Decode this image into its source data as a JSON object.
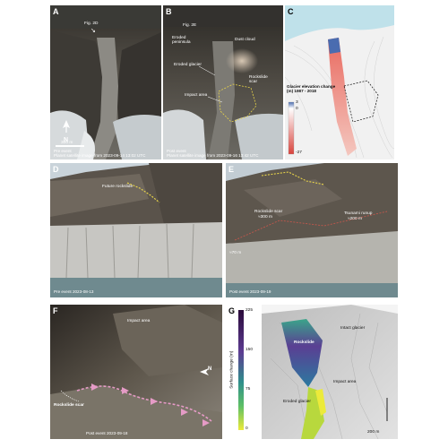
{
  "panel_a": {
    "label": "A",
    "fig_ref": "Fig. 2D",
    "north": "N",
    "scale": "300 m",
    "caption_1": "Pre event",
    "caption_2": "Planet satellite image from 2023-09-14 13:02 UTC"
  },
  "panel_b": {
    "label": "B",
    "fig_ref": "Fig. 2E",
    "eroded_peninsula": "Eroded peninsula",
    "dust_cloud": "Dust cloud",
    "eroded_glacier": "Eroded glacier",
    "rockslide_scar": "Rockslide scar",
    "impact_area": "Impact area",
    "caption_1": "Post event",
    "caption_2": "Planet satellite image from 2023-09-16 13:42 UTC"
  },
  "panel_c": {
    "label": "C",
    "legend_title": "Glacier elevation change (m) 1987 - 2018",
    "ticks": [
      "3",
      "0",
      "-27"
    ]
  },
  "panel_d": {
    "label": "D",
    "future_rockslide": "Future rockslide",
    "caption": "Pre event 2023-08-13"
  },
  "panel_e": {
    "label": "E",
    "rockslide_scar": "Rockslide scar",
    "rockslide_height": "≈300 m",
    "tsunami_height": "Tsunami runup",
    "tsunami_value": "≈200 m",
    "distance": "≈70 m",
    "caption": "Post event 2023-09-19"
  },
  "panel_f": {
    "label": "F",
    "impact_area": "Impact area",
    "rockslide_scar": "Rockslide scar",
    "north": "N",
    "caption": "Post event 2023-09-18"
  },
  "panel_g": {
    "label": "G",
    "colorbar_label": "Surface change (m)",
    "ticks": [
      "225",
      "150",
      "75",
      "0"
    ],
    "intact_glacier": "Intact glacier",
    "rockslide": "Rockslide",
    "impact_area": "Impact area",
    "eroded_glacier": "Eroded glacier",
    "scale": "200 m"
  },
  "colors": {
    "satellite_rock": "#4a4740",
    "ice": "#cdd3d6",
    "water": "#6f8a8f",
    "elevation_red": "#e2564e",
    "elevation_blue": "#4a6cb0",
    "scar_outline": "#e7d34a",
    "arrow_pink": "#e59bc6"
  }
}
